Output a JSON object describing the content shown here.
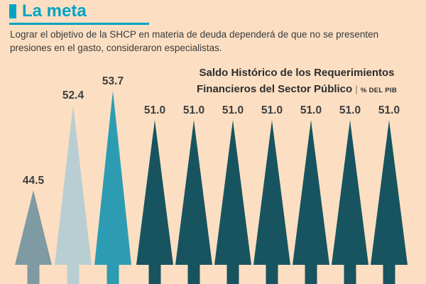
{
  "header": {
    "title": "La meta",
    "subtitle": "Lograr el objetivo de la SHCP en materia de deuda dependerá de que no se presenten presiones en el gasto, consideraron especialistas.",
    "accent_color": "#00a4c4",
    "background_color": "#fcdfc3"
  },
  "chart": {
    "title_line1": "Saldo Histórico de los Requerimientos",
    "title_line2": "Financieros del Sector Público",
    "unit_separator": "|",
    "unit": "% DEL PIB"
  },
  "chart_data": {
    "type": "bar",
    "title": "Saldo Histórico de los Requerimientos Financieros del Sector Público",
    "ylabel": "% del PIB",
    "xlabel": "",
    "categories": [
      "",
      "",
      "",
      "",
      "",
      "",
      "",
      "",
      "",
      ""
    ],
    "values": [
      44.5,
      52.4,
      53.7,
      51.0,
      51.0,
      51.0,
      51.0,
      51.0,
      51.0,
      51.0
    ],
    "labels": [
      "44.5",
      "52.4",
      "53.7",
      "51.0",
      "51.0",
      "51.0",
      "51.0",
      "51.0",
      "51.0",
      "51.0"
    ],
    "colors": [
      "#7f9aa3",
      "#b9ced3",
      "#2d9cb3",
      "#17545f",
      "#17545f",
      "#17545f",
      "#17545f",
      "#17545f",
      "#17545f",
      "#17545f"
    ],
    "label_color": "#3d3d3d",
    "legend": "none",
    "grid": false,
    "x_axis_visible": false
  }
}
